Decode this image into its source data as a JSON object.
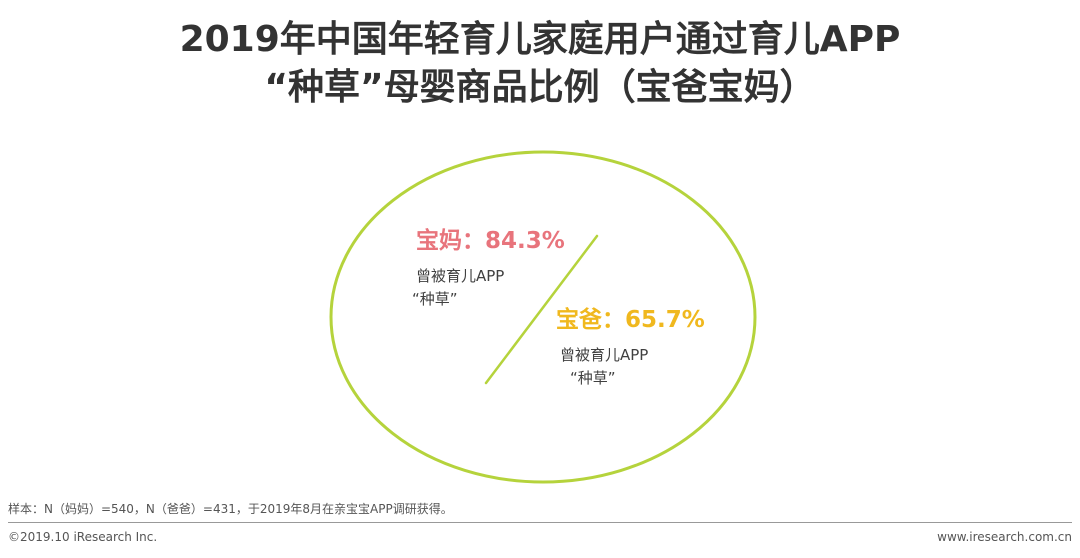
{
  "title": {
    "line1": "2019年中国年轻育儿家庭用户通过育儿APP",
    "line2": "“种草”母婴商品比例（宝爸宝妈）"
  },
  "mom": {
    "label": "宝妈：84.3%",
    "value_percent": 84.3,
    "caption_line1": "曾被育儿APP",
    "caption_line2": "“种草”",
    "color": "#e8747c"
  },
  "dad": {
    "label": "宝爸：65.7%",
    "value_percent": 65.7,
    "caption_line1": "曾被育儿APP",
    "caption_line2": "“种草”",
    "color": "#f0b81e"
  },
  "shape_color": "#b5d33c",
  "footnote": "样本：N（妈妈）=540，N（爸爸）=431，于2019年8月在亲宝宝APP调研获得。",
  "copyright": "©2019.10 iResearch Inc.",
  "website": "www.iresearch.com.cn"
}
